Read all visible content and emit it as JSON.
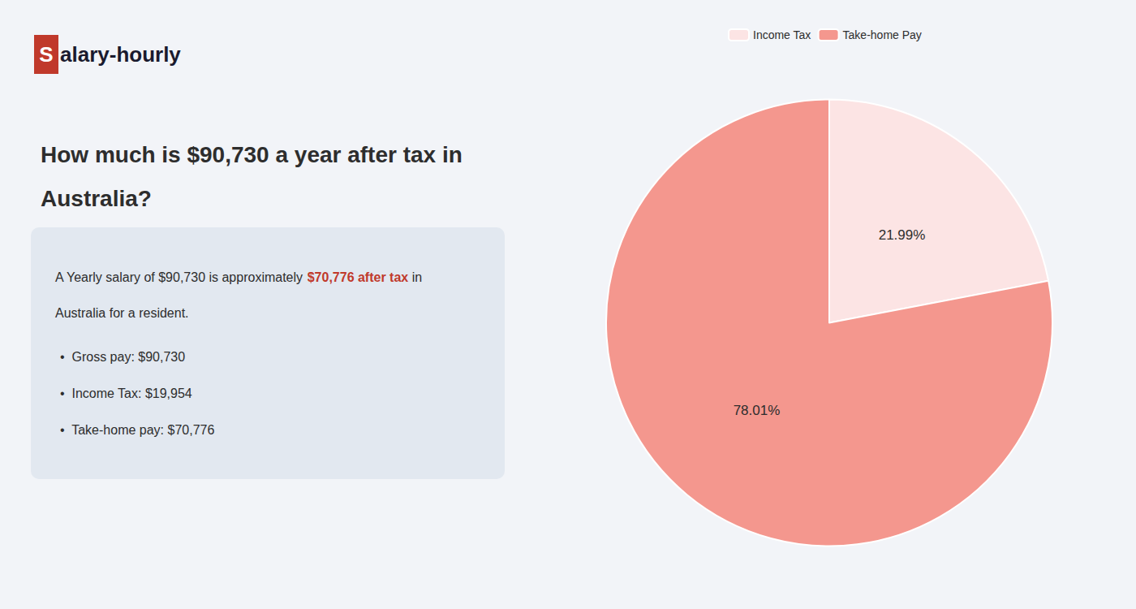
{
  "chart_data": {
    "type": "pie",
    "title": "How much is $90,730 a year after tax in\nAustralia?",
    "categories": [
      "Income Tax",
      "Take-home Pay"
    ],
    "values": [
      21.99,
      78.01
    ],
    "value_labels": [
      "21.99%",
      "78.01%"
    ],
    "colors": [
      "#fce4e4",
      "#f4978e"
    ],
    "data_labels": true,
    "legend": "top",
    "background_color": "#f2f4f8",
    "box_color": "#e2e8f0",
    "text_color": "#2d2d2d",
    "annotations": {
      "logo": [
        {
          "text": "S",
          "color": "#ffffff",
          "background": "#c0392b"
        },
        {
          "text": "alary-hourly",
          "color": "#1a1a2e"
        }
      ],
      "info": [
        [
          {
            "text": "A Yearly salary of $90,730 is approximately ",
            "color": "#2d2d2d"
          },
          {
            "text": "$70,776 after tax",
            "color": "#c0392b",
            "bold": true
          },
          {
            "text": " in",
            "color": "#2d2d2d"
          }
        ],
        [
          {
            "text": "Australia for a resident.",
            "color": "#2d2d2d"
          }
        ]
      ],
      "bullets": [
        "•  Gross pay: $90,730",
        "•  Income Tax: $19,954",
        "•  Take-home pay: $70,776"
      ]
    }
  }
}
